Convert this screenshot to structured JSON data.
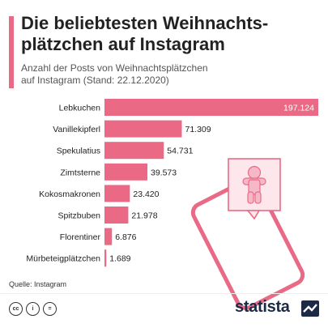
{
  "header": {
    "title_line1": "Die beliebtesten Weihnachts-",
    "title_line2": "plätzchen auf Instagram",
    "subtitle_line1": "Anzahl der Posts von Weihnachtsplätzchen",
    "subtitle_line2": "auf Instagram (Stand: 22.12.2020)"
  },
  "chart_data": {
    "type": "bar",
    "orientation": "horizontal",
    "categories": [
      "Lebkuchen",
      "Vanillekipferl",
      "Spekulatius",
      "Zimtsterne",
      "Kokosmakronen",
      "Spitzbuben",
      "Florentiner",
      "Mürbeteigplätzchen"
    ],
    "values": [
      197124,
      71309,
      54731,
      39573,
      23420,
      21978,
      6876,
      1689
    ],
    "value_labels": [
      "197.124",
      "71.309",
      "54.731",
      "39.573",
      "23.420",
      "21.978",
      "6.876",
      "1.689"
    ],
    "xlim": [
      0,
      197124
    ],
    "grid": false,
    "legend": "none",
    "bar_color": "#ea6a86",
    "first_label_color": "#ffffff",
    "label_color": "#222222"
  },
  "footer": {
    "source": "Quelle: Instagram",
    "cc_icons": [
      "cc-icon",
      "by-icon",
      "nd-icon"
    ],
    "logo": "statista"
  },
  "decoration": {
    "phone_color": "#ea6a86",
    "gingerbread_color": "#f5b8c6"
  }
}
